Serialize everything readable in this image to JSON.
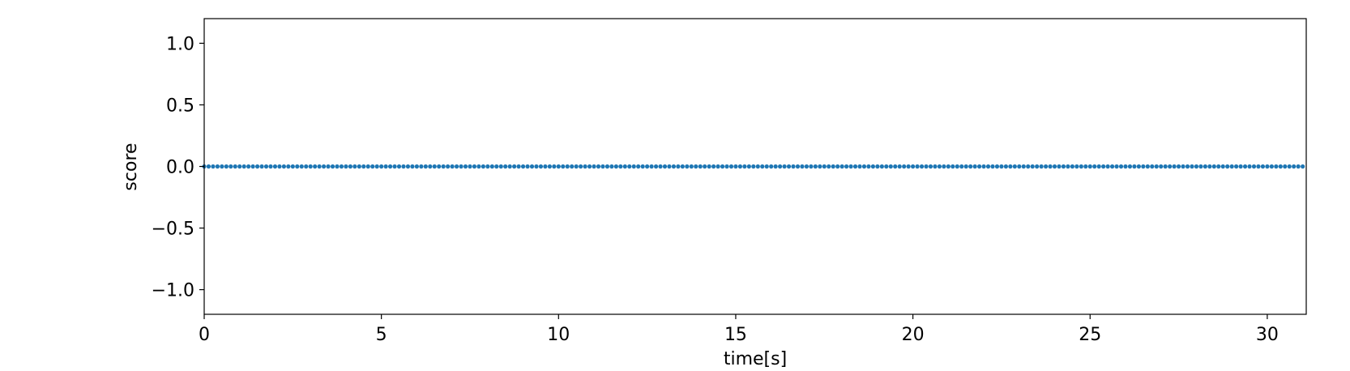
{
  "chart_data": {
    "type": "scatter",
    "title": "",
    "xlabel": "time[s]",
    "ylabel": "score",
    "xlim": [
      0,
      31.1
    ],
    "ylim": [
      -1.2,
      1.2
    ],
    "xticks": [
      0,
      5,
      10,
      15,
      20,
      25,
      30
    ],
    "xtick_labels": [
      "0",
      "5",
      "10",
      "15",
      "20",
      "25",
      "30"
    ],
    "yticks": [
      1.0,
      0.5,
      0.0,
      -0.5,
      -1.0
    ],
    "ytick_labels": [
      "1.0",
      "0.5",
      "0.0",
      "−0.5",
      "−1.0"
    ],
    "grid": false,
    "marker_color": "#1f77b4",
    "series": [
      {
        "x_start": 0,
        "x_end": 31.1,
        "x_step": 0.125,
        "y_constant": 0.0
      }
    ]
  }
}
